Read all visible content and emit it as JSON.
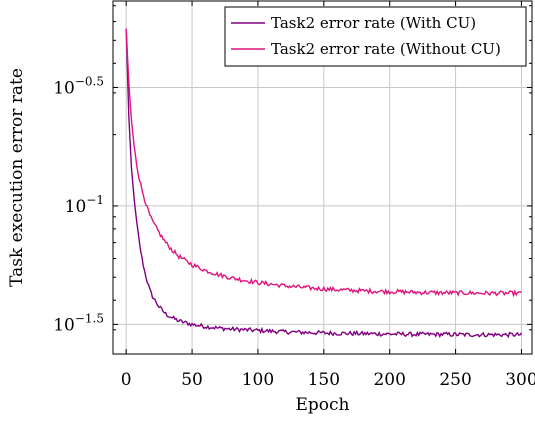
{
  "chart_data": {
    "type": "line",
    "title": "",
    "xlabel": "Epoch",
    "ylabel": "Task execution error rate",
    "x_range": [
      -10,
      308
    ],
    "y_log_range": [
      -1.625,
      -0.135
    ],
    "y_scale": "log10",
    "grid": true,
    "legend_position": "top-right",
    "x_ticks": [
      {
        "value": 0,
        "label": "0"
      },
      {
        "value": 50,
        "label": "50"
      },
      {
        "value": 100,
        "label": "100"
      },
      {
        "value": 150,
        "label": "150"
      },
      {
        "value": 200,
        "label": "200"
      },
      {
        "value": 250,
        "label": "250"
      },
      {
        "value": 300,
        "label": "300"
      }
    ],
    "y_ticks": [
      {
        "value": -0.5,
        "base": "10",
        "exp": "−0.5"
      },
      {
        "value": -1,
        "base": "10",
        "exp": "−1"
      },
      {
        "value": -1.5,
        "base": "10",
        "exp": "−1.5"
      }
    ],
    "series": [
      {
        "name": "Task2 error rate (With CU)",
        "color": "#800080",
        "x": [
          0,
          2,
          4,
          6,
          8,
          10,
          12,
          14,
          16,
          18,
          20,
          25,
          30,
          35,
          40,
          50,
          60,
          70,
          80,
          90,
          100,
          120,
          140,
          160,
          180,
          200,
          220,
          240,
          260,
          280,
          300
        ],
        "y": [
          0.56,
          0.24,
          0.145,
          0.108,
          0.085,
          0.07,
          0.06,
          0.053,
          0.048,
          0.044,
          0.0415,
          0.0375,
          0.035,
          0.0337,
          0.0327,
          0.0316,
          0.031,
          0.0305,
          0.0302,
          0.03,
          0.0298,
          0.0294,
          0.0292,
          0.029,
          0.0289,
          0.0288,
          0.0287,
          0.0287,
          0.0286,
          0.0286,
          0.0286
        ]
      },
      {
        "name": "Task2 error rate (Without CU)",
        "color": "#e0147e",
        "x": [
          0,
          2,
          4,
          6,
          8,
          10,
          12,
          14,
          16,
          18,
          20,
          25,
          30,
          35,
          40,
          50,
          60,
          70,
          80,
          90,
          100,
          120,
          140,
          160,
          180,
          200,
          220,
          240,
          260,
          280,
          300
        ],
        "y": [
          0.56,
          0.33,
          0.23,
          0.18,
          0.15,
          0.13,
          0.117,
          0.107,
          0.098,
          0.091,
          0.086,
          0.077,
          0.07,
          0.065,
          0.0612,
          0.0565,
          0.0535,
          0.0513,
          0.0497,
          0.0485,
          0.0475,
          0.046,
          0.045,
          0.0443,
          0.0438,
          0.0435,
          0.0432,
          0.043,
          0.0429,
          0.0428,
          0.0428
        ]
      }
    ]
  }
}
